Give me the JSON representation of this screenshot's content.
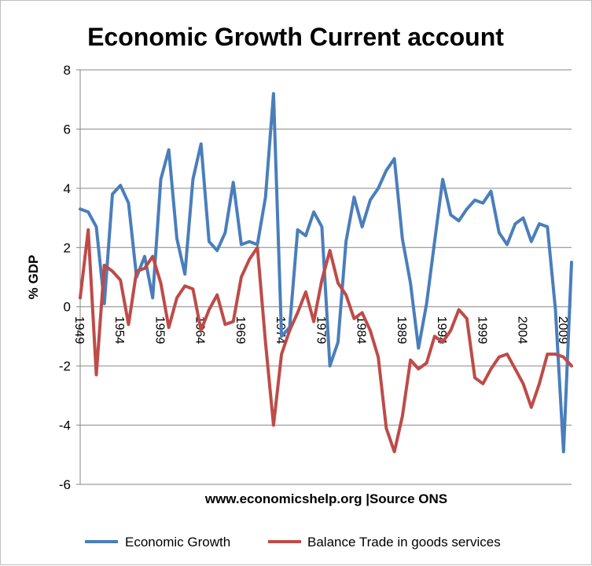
{
  "chart_data": {
    "type": "line",
    "title": "Economic Growth Current account",
    "xlabel": "www.economicshelp.org |Source ONS",
    "ylabel": "% GDP",
    "ylim": [
      -6,
      8
    ],
    "yticks": [
      -6,
      -4,
      -2,
      0,
      2,
      4,
      6,
      8
    ],
    "xtick_labels": [
      "1949",
      "1954",
      "1959",
      "1964",
      "1969",
      "1974",
      "1979",
      "1984",
      "1989",
      "1994",
      "1999",
      "2004",
      "2009"
    ],
    "grid": "horizontal",
    "legend_position": "bottom",
    "x": [
      1949,
      1950,
      1951,
      1952,
      1953,
      1954,
      1955,
      1956,
      1957,
      1958,
      1959,
      1960,
      1961,
      1962,
      1963,
      1964,
      1965,
      1966,
      1967,
      1968,
      1969,
      1970,
      1971,
      1972,
      1973,
      1974,
      1975,
      1976,
      1977,
      1978,
      1979,
      1980,
      1981,
      1982,
      1983,
      1984,
      1985,
      1986,
      1987,
      1988,
      1989,
      1990,
      1991,
      1992,
      1993,
      1994,
      1995,
      1996,
      1997,
      1998,
      1999,
      2000,
      2001,
      2002,
      2003,
      2004,
      2005,
      2006,
      2007,
      2008,
      2009,
      2010
    ],
    "series": [
      {
        "name": "Economic Growth",
        "color": "#4a7ebb",
        "values": [
          3.3,
          3.2,
          2.7,
          0.1,
          3.8,
          4.1,
          3.5,
          1.0,
          1.7,
          0.3,
          4.3,
          5.3,
          2.3,
          1.1,
          4.3,
          5.5,
          2.2,
          1.9,
          2.5,
          4.2,
          2.1,
          2.2,
          2.1,
          3.7,
          7.2,
          -1.0,
          -0.7,
          2.6,
          2.4,
          3.2,
          2.7,
          -2.0,
          -1.2,
          2.2,
          3.7,
          2.7,
          3.6,
          4.0,
          4.6,
          5.0,
          2.3,
          0.8,
          -1.4,
          0.1,
          2.2,
          4.3,
          3.1,
          2.9,
          3.3,
          3.6,
          3.5,
          3.9,
          2.5,
          2.1,
          2.8,
          3.0,
          2.2,
          2.8,
          2.7,
          -0.1,
          -4.9,
          1.5
        ]
      },
      {
        "name": "Balance Trade in goods services",
        "color": "#be4b48",
        "values": [
          0.3,
          2.6,
          -2.3,
          1.4,
          1.2,
          0.9,
          -0.6,
          1.2,
          1.3,
          1.7,
          0.8,
          -0.7,
          0.3,
          0.7,
          0.6,
          -0.8,
          -0.1,
          0.4,
          -0.6,
          -0.5,
          1.0,
          1.6,
          2.0,
          -1.2,
          -4.0,
          -1.6,
          -0.8,
          -0.2,
          0.5,
          -0.5,
          0.9,
          1.9,
          0.8,
          0.4,
          -0.4,
          -0.2,
          -0.8,
          -1.7,
          -4.1,
          -4.9,
          -3.7,
          -1.8,
          -2.1,
          -1.9,
          -1.0,
          -1.2,
          -0.8,
          -0.1,
          -0.4,
          -2.4,
          -2.6,
          -2.1,
          -1.7,
          -1.6,
          -2.1,
          -2.6,
          -3.4,
          -2.6,
          -1.6,
          -1.6,
          -1.7,
          -2.0
        ]
      }
    ]
  }
}
